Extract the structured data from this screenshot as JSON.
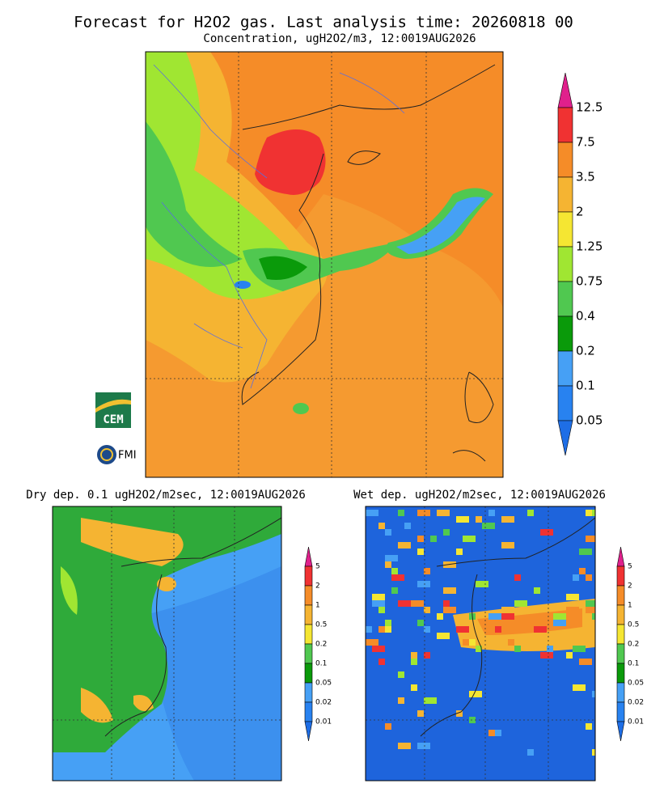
{
  "header": {
    "title": "Forecast for H2O2 gas. Last analysis time: 20260818 00",
    "subtitle": "Concentration, ugH2O2/m3, 12:0019AUG2026"
  },
  "main_panel": {
    "colorbar": {
      "labels": [
        "12.5",
        "7.5",
        "3.5",
        "2",
        "1.25",
        "0.75",
        "0.4",
        "0.2",
        "0.1",
        "0.05"
      ],
      "colors": [
        "#e0208c",
        "#f03232",
        "#f58c28",
        "#f5b432",
        "#f5e632",
        "#a0e632",
        "#50c850",
        "#0a9a0a",
        "#46a0f5",
        "#2882f0",
        "#1e6ee6"
      ]
    }
  },
  "dry_panel": {
    "title": "Dry dep. 0.1 ugH2O2/m2sec, 12:0019AUG2026",
    "colorbar": {
      "labels": [
        "5",
        "2",
        "1",
        "0.5",
        "0.2",
        "0.1",
        "0.05",
        "0.02",
        "0.01"
      ],
      "colors": [
        "#e0208c",
        "#f03232",
        "#f58c28",
        "#f5b432",
        "#f5e632",
        "#50c850",
        "#0a9a0a",
        "#46a0f5",
        "#2882f0",
        "#1e6ee6"
      ]
    }
  },
  "wet_panel": {
    "title": "Wet dep. ugH2O2/m2sec, 12:0019AUG2026",
    "colorbar": {
      "labels": [
        "5",
        "2",
        "1",
        "0.5",
        "0.2",
        "0.1",
        "0.05",
        "0.02",
        "0.01"
      ],
      "colors": [
        "#e0208c",
        "#f03232",
        "#f58c28",
        "#f5b432",
        "#f5e632",
        "#50c850",
        "#0a9a0a",
        "#46a0f5",
        "#2882f0",
        "#1e6ee6"
      ]
    }
  },
  "logos": {
    "cem": "CEM",
    "fmi": "FMI"
  }
}
